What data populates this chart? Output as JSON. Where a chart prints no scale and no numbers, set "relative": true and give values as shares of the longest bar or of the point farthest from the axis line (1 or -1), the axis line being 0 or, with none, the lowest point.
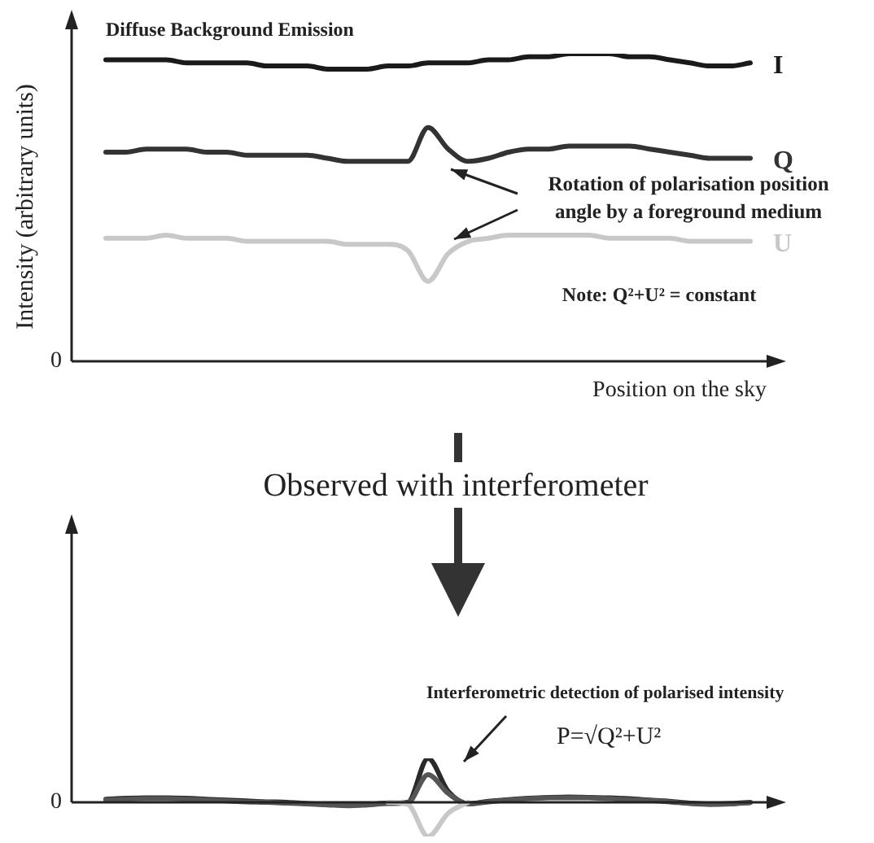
{
  "chart_data": [
    {
      "type": "line",
      "relative": true,
      "title": "Diffuse Background Emission",
      "xlabel": "Position on the sky",
      "ylabel": "Intensity (arbitrary units)",
      "marker": "none",
      "legend": false,
      "tick_labels": false,
      "categories": [
        null,
        null,
        null,
        null,
        null,
        null,
        null,
        null,
        null,
        null,
        null,
        null,
        null,
        null,
        null,
        null,
        null,
        null,
        null,
        null,
        null,
        null,
        null,
        null,
        null,
        null,
        null,
        null,
        null,
        null,
        null,
        null,
        null
      ],
      "series": [
        {
          "name": "I",
          "color": "#1a1a1a",
          "values": [
            0.98,
            0.98,
            0.98,
            0.98,
            0.97,
            0.97,
            0.97,
            0.97,
            0.96,
            0.96,
            0.96,
            0.95,
            0.95,
            0.95,
            0.96,
            0.96,
            0.97,
            0.97,
            0.97,
            0.98,
            0.98,
            0.99,
            0.99,
            1,
            1,
            1,
            0.99,
            0.99,
            0.98,
            0.97,
            0.96,
            0.96,
            0.97
          ]
        },
        {
          "name": "Q",
          "color": "#333333",
          "values": [
            0.68,
            0.68,
            0.69,
            0.69,
            0.69,
            0.68,
            0.68,
            0.67,
            0.67,
            0.67,
            0.67,
            0.66,
            0.65,
            0.65,
            0.65,
            0.65,
            0.76,
            0.69,
            0.65,
            0.66,
            0.68,
            0.69,
            0.69,
            0.7,
            0.7,
            0.7,
            0.7,
            0.69,
            0.68,
            0.67,
            0.66,
            0.66,
            0.66
          ]
        },
        {
          "name": "U",
          "color": "#c8c8c8",
          "values": [
            0.4,
            0.4,
            0.4,
            0.41,
            0.4,
            0.4,
            0.4,
            0.39,
            0.39,
            0.39,
            0.39,
            0.39,
            0.38,
            0.38,
            0.38,
            0.36,
            0.26,
            0.35,
            0.39,
            0.4,
            0.41,
            0.41,
            0.41,
            0.41,
            0.41,
            0.4,
            0.4,
            0.4,
            0.4,
            0.39,
            0.39,
            0.39,
            0.39
          ]
        }
      ],
      "annotations": [
        "0",
        "Rotation of polarisation position angle by a foreground medium",
        "Note: Q²+U² = constant"
      ]
    },
    {
      "type": "line",
      "relative": true,
      "title": "Observed with interferometer",
      "marker": "none",
      "legend": false,
      "tick_labels": false,
      "categories": [
        null,
        null,
        null,
        null,
        null,
        null,
        null,
        null,
        null,
        null,
        null,
        null,
        null,
        null,
        null,
        null,
        null,
        null,
        null,
        null,
        null,
        null,
        null,
        null,
        null,
        null,
        null,
        null,
        null,
        null,
        null,
        null,
        null
      ],
      "series": [
        {
          "color": "#c8c8c8",
          "values": [
            null,
            null,
            null,
            null,
            null,
            null,
            null,
            null,
            null,
            null,
            null,
            null,
            null,
            null,
            0,
            -0.05,
            -0.78,
            -0.25,
            0,
            null,
            null,
            null,
            null,
            null,
            null,
            null,
            null,
            null,
            null,
            null,
            null,
            null,
            null
          ]
        },
        {
          "color": "#555555",
          "values": [
            0.05,
            0.07,
            0.08,
            0.08,
            0.07,
            0.05,
            0.03,
            0.01,
            0,
            -0.02,
            -0.04,
            -0.06,
            -0.08,
            -0.06,
            -0.03,
            -0.01,
            0.63,
            0.2,
            -0.04,
            0.01,
            0.05,
            0.08,
            0.1,
            0.1,
            0.1,
            0.08,
            0.06,
            0.04,
            0.01,
            -0.03,
            -0.05,
            -0.04,
            -0.01
          ]
        },
        {
          "color": "#2a2a2a",
          "values": [
            0.07,
            0.09,
            0.1,
            0.1,
            0.09,
            0.07,
            0.05,
            0.03,
            0.01,
            0,
            -0.03,
            -0.05,
            -0.07,
            -0.05,
            -0.02,
            0,
            1,
            0.25,
            -0.03,
            0.02,
            0.06,
            0.09,
            0.11,
            0.12,
            0.11,
            0.1,
            0.08,
            0.05,
            0.02,
            -0.02,
            -0.04,
            -0.03,
            0
          ]
        }
      ],
      "annotations": [
        "0",
        "Interferometric detection of polarised intensity",
        "P=√Q²+U²"
      ]
    }
  ]
}
